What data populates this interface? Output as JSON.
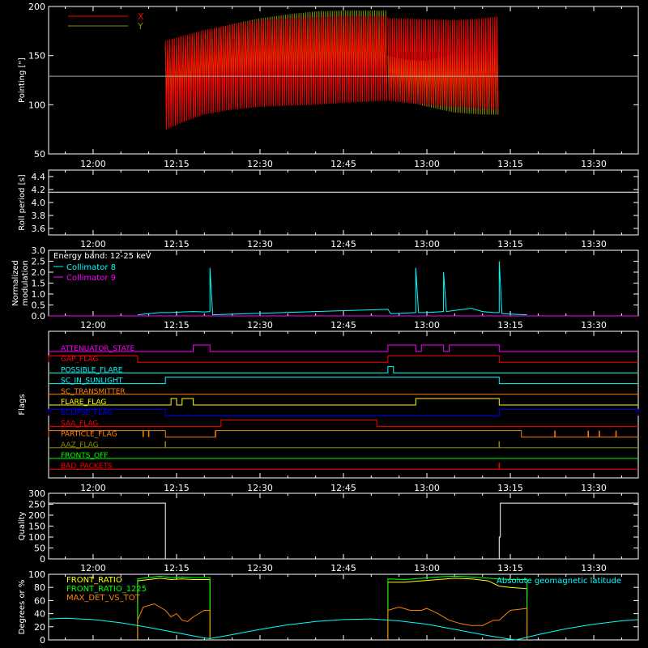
{
  "chart_data": [
    {
      "type": "line",
      "ylabel": "Pointing [\"]",
      "ylim": [
        50,
        200
      ],
      "yticks": [
        50,
        100,
        150,
        200
      ],
      "xlim": [
        "11:52",
        "13:38"
      ],
      "xticks": [
        "12:00",
        "12:15",
        "12:30",
        "12:45",
        "13:00",
        "13:15",
        "13:30"
      ],
      "reference_line": 129,
      "legend": "top-left",
      "series": [
        {
          "name": "X",
          "color": "#ff0000",
          "segments": [
            {
              "x": [
                "12:13",
                "12:16",
                "12:20",
                "12:25",
                "12:30",
                "12:35",
                "12:40",
                "12:45",
                "12:49",
                "12:53"
              ],
              "min": [
                74,
                82,
                90,
                95,
                98,
                99,
                100,
                102,
                103,
                104
              ],
              "max": [
                165,
                170,
                176,
                182,
                186,
                188,
                189,
                190,
                190,
                190
              ]
            },
            {
              "x": [
                "12:53",
                "12:56",
                "13:00",
                "13:05",
                "13:10",
                "13:13"
              ],
              "min": [
                104,
                102,
                100,
                98,
                96,
                95
              ],
              "max": [
                188,
                188,
                187,
                186,
                188,
                190
              ]
            }
          ]
        },
        {
          "name": "Y",
          "color": "#8b8b00",
          "segments": [
            {
              "x": [
                "12:13",
                "12:16",
                "12:20",
                "12:25",
                "12:30",
                "12:35",
                "12:40",
                "12:45",
                "12:49",
                "12:53"
              ],
              "min": [
                104,
                110,
                118,
                122,
                123,
                124,
                125,
                124,
                123,
                122
              ],
              "max": [
                158,
                162,
                172,
                182,
                188,
                192,
                195,
                196,
                196,
                196
              ]
            },
            {
              "x": [
                "12:53",
                "12:56",
                "13:00",
                "13:05",
                "13:10",
                "13:13"
              ],
              "min": [
                110,
                104,
                98,
                92,
                90,
                90
              ],
              "max": [
                150,
                146,
                145,
                152,
                160,
                166
              ]
            }
          ]
        }
      ]
    },
    {
      "type": "line",
      "ylabel": "Roll period [s]",
      "ylim": [
        3.5,
        4.5
      ],
      "yticks": [
        3.6,
        3.8,
        4.0,
        4.2,
        4.4
      ],
      "xlim": [
        "11:52",
        "13:38"
      ],
      "xticks": [
        "12:00",
        "12:15",
        "12:30",
        "12:45",
        "13:00",
        "13:15",
        "13:30"
      ],
      "series": [
        {
          "x": [
            "11:52",
            "13:38"
          ],
          "y": [
            4.16,
            4.16
          ],
          "color": "#ffffff"
        }
      ]
    },
    {
      "type": "line",
      "ylabel": "Normalized modulation",
      "ylim": [
        0,
        3.0
      ],
      "yticks": [
        0.0,
        0.5,
        1.0,
        1.5,
        2.0,
        2.5,
        3.0
      ],
      "xlim": [
        "11:52",
        "13:38"
      ],
      "xticks": [
        "12:00",
        "12:15",
        "12:30",
        "12:45",
        "13:00",
        "13:15",
        "13:30"
      ],
      "annotation": "Energy band: 12-25 keV",
      "series": [
        {
          "name": "Collimator 8",
          "color": "#00ffff",
          "x": [
            "12:08",
            "12:10",
            "12:12",
            "12:14",
            "12:16",
            "12:18",
            "12:20",
            "12:21",
            "12:21",
            "12:21.5",
            "12:53",
            "12:53.5",
            "12:54",
            "12:58",
            "12:58",
            "12:58.5",
            "13:00",
            "13:03",
            "13:03",
            "13:03.5",
            "13:05",
            "13:08",
            "13:10",
            "13:12",
            "13:13",
            "13:13",
            "13:13.5",
            "13:15",
            "13:18"
          ],
          "y": [
            0.05,
            0.1,
            0.15,
            0.15,
            0.18,
            0.2,
            0.18,
            0.2,
            2.2,
            0.05,
            0.3,
            0.1,
            0.1,
            0.15,
            2.2,
            0.15,
            0.15,
            0.2,
            2.0,
            0.2,
            0.25,
            0.35,
            0.2,
            0.15,
            0.15,
            2.5,
            0.1,
            0.08,
            0.05
          ]
        },
        {
          "name": "Collimator 9",
          "color": "#ff00ff",
          "x": [
            "11:52",
            "13:38"
          ],
          "y": [
            0,
            0
          ]
        }
      ]
    },
    {
      "type": "table",
      "ylabel": "Flags",
      "xlim": [
        "11:52",
        "13:38"
      ],
      "xticks": [
        "12:00",
        "12:15",
        "12:30",
        "12:45",
        "13:00",
        "13:15",
        "13:30"
      ],
      "flags": [
        {
          "name": "ATTENUATOR_STATE",
          "color": "#ff00ff",
          "on": [
            [
              "12:18",
              "12:21"
            ],
            [
              "12:53",
              "12:58"
            ],
            [
              "12:59",
              "13:03"
            ],
            [
              "13:04",
              "13:13"
            ]
          ],
          "pulses": []
        },
        {
          "name": "GAP_FLAG",
          "color": "#ff0000",
          "on": [
            [
              "11:52",
              "12:08"
            ],
            [
              "12:53",
              "13:13"
            ]
          ],
          "pulses": []
        },
        {
          "name": "POSSIBLE_FLARE",
          "color": "#00ffff",
          "on": [
            [
              "12:53",
              "12:54"
            ]
          ],
          "pulses": []
        },
        {
          "name": "SC_IN_SUNLIGHT",
          "color": "#00ffff",
          "on": [
            [
              "12:13",
              "13:13"
            ]
          ],
          "pulses": []
        },
        {
          "name": "SC_TRANSMITTER",
          "color": "#ff8000",
          "on": [],
          "pulses": []
        },
        {
          "name": "FLARE_FLAG",
          "color": "#ffff00",
          "on": [
            [
              "12:14",
              "12:15"
            ],
            [
              "12:16",
              "12:18"
            ],
            [
              "12:58",
              "13:13"
            ]
          ],
          "pulses": []
        },
        {
          "name": "ECLIPSE_FLAG",
          "color": "#0000ff",
          "on": [
            [
              "11:52",
              "12:13"
            ],
            [
              "13:13",
              "13:38"
            ]
          ],
          "pulses": []
        },
        {
          "name": "SAA_FLAG",
          "color": "#ff0000",
          "on": [
            [
              "12:23",
              "12:51"
            ]
          ],
          "pulses": []
        },
        {
          "name": "PARTICLE_FLAG",
          "color": "#ff8000",
          "on": [
            [
              "11:52",
              "12:13"
            ],
            [
              "12:22",
              "13:17"
            ]
          ],
          "pulses": [
            "12:09",
            "12:10",
            "12:22",
            "13:23",
            "13:29",
            "13:31",
            "13:34"
          ]
        },
        {
          "name": "AAZ_FLAG",
          "color": "#8b8b00",
          "on": [],
          "pulses": [
            "12:13",
            "13:13"
          ]
        },
        {
          "name": "FRONTS_OFF",
          "color": "#00ff00",
          "on": [],
          "pulses": []
        },
        {
          "name": "BAD_PACKETS",
          "color": "#ff0000",
          "on": [],
          "pulses": [
            "13:13"
          ]
        }
      ]
    },
    {
      "type": "line",
      "ylabel": "Quality",
      "ylim": [
        0,
        300
      ],
      "yticks": [
        0,
        50,
        100,
        150,
        200,
        250,
        300
      ],
      "xlim": [
        "11:52",
        "13:38"
      ],
      "xticks": [
        "12:00",
        "12:15",
        "12:30",
        "12:45",
        "13:00",
        "13:15",
        "13:30"
      ],
      "series": [
        {
          "color": "#ffffff",
          "x": [
            "11:52",
            "12:13",
            "12:13",
            "13:13",
            "13:13",
            "13:13.2",
            "13:13.2",
            "13:38"
          ],
          "y": [
            255,
            255,
            0,
            0,
            100,
            100,
            255,
            255
          ]
        }
      ]
    },
    {
      "type": "line",
      "ylabel": "Degrees or %",
      "ylim": [
        0,
        100
      ],
      "yticks": [
        0,
        20,
        40,
        60,
        80,
        100
      ],
      "xlim": [
        "11:52",
        "13:38"
      ],
      "xticks": [
        "12:00",
        "12:15",
        "12:30",
        "12:45",
        "13:00",
        "13:15",
        "13:30"
      ],
      "annotation": "Absolute geomagnetic latitude",
      "annotation_color": "#00ffff",
      "series": [
        {
          "name": "FRONT_RATIO",
          "color": "#ffff00",
          "segments": [
            {
              "x": [
                "12:08",
                "12:10",
                "12:12",
                "12:14",
                "12:16",
                "12:18",
                "12:21"
              ],
              "y": [
                90,
                92,
                94,
                92,
                93,
                92,
                92
              ]
            },
            {
              "x": [
                "12:53",
                "12:56",
                "12:59",
                "13:02",
                "13:05",
                "13:08",
                "13:11",
                "13:13",
                "13:15",
                "13:18"
              ],
              "y": [
                88,
                88,
                90,
                92,
                94,
                93,
                90,
                82,
                80,
                78
              ]
            }
          ]
        },
        {
          "name": "FRONT_RATIO_1225",
          "color": "#00ff00",
          "segments": [
            {
              "x": [
                "12:08",
                "12:10",
                "12:12",
                "12:14",
                "12:16",
                "12:18",
                "12:21"
              ],
              "y": [
                93,
                95,
                97,
                95,
                96,
                95,
                95
              ]
            },
            {
              "x": [
                "12:53",
                "12:56",
                "12:59",
                "13:02",
                "13:05",
                "13:08",
                "13:11",
                "13:13",
                "13:15",
                "13:18"
              ],
              "y": [
                93,
                92,
                94,
                96,
                97,
                96,
                94,
                93,
                92,
                92
              ]
            }
          ]
        },
        {
          "name": "MAX_DET_VS_TOT",
          "color": "#ff8000",
          "segments": [
            {
              "x": [
                "12:08",
                "12:09",
                "12:11",
                "12:13",
                "12:14",
                "12:15",
                "12:16",
                "12:17",
                "12:18",
                "12:20",
                "12:21"
              ],
              "y": [
                30,
                50,
                55,
                45,
                35,
                40,
                30,
                28,
                35,
                45,
                45
              ]
            },
            {
              "x": [
                "12:53",
                "12:55",
                "12:57",
                "12:59",
                "13:00",
                "13:02",
                "13:04",
                "13:06",
                "13:08",
                "13:10",
                "13:12",
                "13:13",
                "13:15",
                "13:18"
              ],
              "y": [
                45,
                50,
                45,
                45,
                48,
                40,
                30,
                25,
                22,
                22,
                30,
                30,
                45,
                48
              ]
            }
          ]
        },
        {
          "name": "Absolute geomagnetic latitude",
          "color": "#00ffff",
          "x": [
            "11:52",
            "11:55",
            "12:00",
            "12:05",
            "12:10",
            "12:15",
            "12:20",
            "12:21",
            "12:25",
            "12:30",
            "12:35",
            "12:40",
            "12:45",
            "12:50",
            "12:55",
            "13:00",
            "13:05",
            "13:10",
            "13:15",
            "13:16",
            "13:20",
            "13:25",
            "13:30",
            "13:35",
            "13:38"
          ],
          "y": [
            32,
            33,
            31,
            26,
            19,
            11,
            3,
            2,
            8,
            16,
            23,
            28,
            31,
            32,
            29,
            24,
            16,
            8,
            1,
            0,
            8,
            17,
            24,
            29,
            31
          ]
        }
      ]
    }
  ]
}
